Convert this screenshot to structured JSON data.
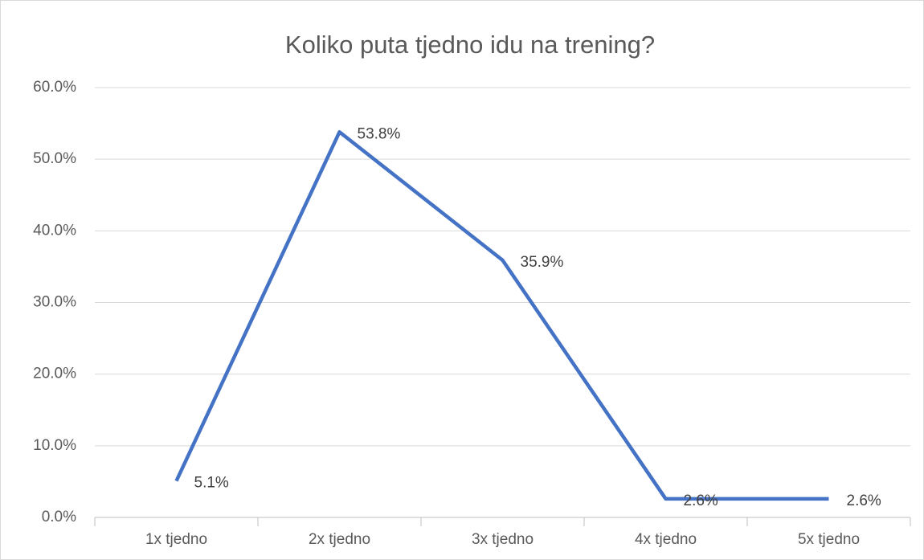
{
  "chart_data": {
    "type": "line",
    "title": "Koliko puta tjedno idu na trening?",
    "categories": [
      "1x tjedno",
      "2x tjedno",
      "3x tjedno",
      "4x tjedno",
      "5x tjedno"
    ],
    "values": [
      5.1,
      53.8,
      35.9,
      2.6,
      2.6
    ],
    "value_labels": [
      "5.1%",
      "53.8%",
      "35.9%",
      "2.6%",
      "2.6%"
    ],
    "color": "#4472c4",
    "ylim": [
      0,
      60
    ],
    "yticks": [
      {
        "value": 0,
        "label": "0.0%"
      },
      {
        "value": 10,
        "label": "10.0%"
      },
      {
        "value": 20,
        "label": "20.0%"
      },
      {
        "value": 30,
        "label": "30.0%"
      },
      {
        "value": 40,
        "label": "40.0%"
      },
      {
        "value": 50,
        "label": "50.0%"
      },
      {
        "value": 60,
        "label": "60.0%"
      }
    ],
    "grid": true
  }
}
